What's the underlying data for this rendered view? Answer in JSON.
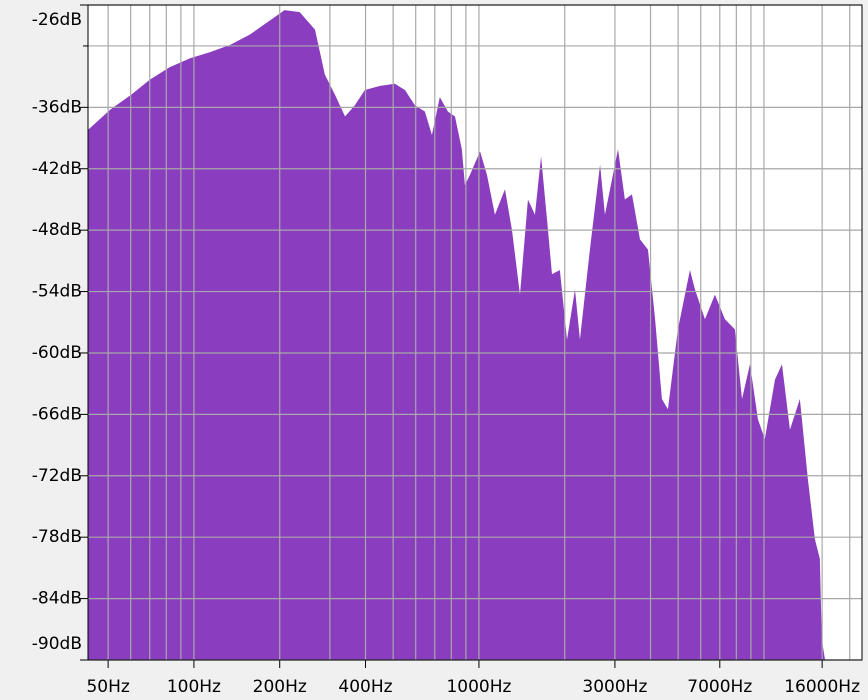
{
  "chart_data": {
    "type": "area",
    "log_x": true,
    "grid": true,
    "color": "#8a3dbf",
    "x": [
      42.5,
      51,
      60,
      70,
      82,
      97,
      114,
      134,
      157,
      185,
      208,
      235,
      266,
      288,
      313,
      339,
      367,
      398,
      450,
      507,
      550,
      596,
      646,
      684,
      729,
      778,
      824,
      871,
      893,
      930,
      1009,
      1067,
      1138,
      1234,
      1306,
      1393,
      1486,
      1572,
      1652,
      1734,
      1804,
      1923,
      2037,
      2173,
      2261,
      2451,
      2661,
      2767,
      2884,
      3076,
      3251,
      3443,
      3673,
      3918,
      4150,
      4385,
      4603,
      4990,
      5500,
      5728,
      6209,
      6730,
      7296,
      7907,
      8375,
      8933,
      9528,
      10070,
      10932,
      11566,
      12337,
      13366,
      14256,
      15092,
      15704,
      15960,
      16360
    ],
    "values": [
      -38.2,
      -36.2,
      -34.8,
      -33.3,
      -32.1,
      -31.2,
      -30.6,
      -29.9,
      -28.9,
      -27.5,
      -26.5,
      -26.7,
      -28.4,
      -32.8,
      -34.8,
      -36.9,
      -35.8,
      -34.3,
      -33.9,
      -33.7,
      -34.3,
      -35.8,
      -36.4,
      -38.7,
      -35.0,
      -36.4,
      -36.9,
      -40.1,
      -43.6,
      -42.6,
      -40.3,
      -42.6,
      -46.5,
      -44.0,
      -48.0,
      -54.3,
      -45.0,
      -46.5,
      -40.8,
      -47.0,
      -52.3,
      -51.9,
      -58.7,
      -53.8,
      -58.7,
      -49.9,
      -41.6,
      -46.5,
      -44.0,
      -40.1,
      -45.0,
      -44.5,
      -48.9,
      -49.9,
      -56.7,
      -64.5,
      -65.5,
      -57.7,
      -51.9,
      -53.8,
      -56.7,
      -54.3,
      -56.7,
      -57.7,
      -64.5,
      -61.1,
      -66.5,
      -68.4,
      -62.6,
      -61.1,
      -67.5,
      -64.5,
      -72.3,
      -78.2,
      -80.1,
      -88.0,
      -89.9
    ],
    "xlim": [
      42.5,
      22080
    ],
    "xticks": [
      {
        "value": 50,
        "label": "50Hz"
      },
      {
        "value": 100,
        "label": "100Hz"
      },
      {
        "value": 200,
        "label": "200Hz"
      },
      {
        "value": 400,
        "label": "400Hz"
      },
      {
        "value": 1000,
        "label": "1000Hz"
      },
      {
        "value": 3000,
        "label": "3000Hz"
      },
      {
        "value": 7000,
        "label": "7000Hz"
      },
      {
        "value": 16000,
        "label": "16000Hz"
      }
    ],
    "xminor": [
      60,
      70,
      80,
      90,
      300,
      500,
      600,
      700,
      800,
      900,
      2000,
      4000,
      5000,
      6000,
      8000,
      9000,
      10000,
      20000
    ],
    "ylim": [
      -90,
      -26
    ],
    "yticks": [
      {
        "value": -26,
        "label": "-26dB"
      },
      {
        "value": -36,
        "label": "-36dB"
      },
      {
        "value": -42,
        "label": "-42dB"
      },
      {
        "value": -48,
        "label": "-48dB"
      },
      {
        "value": -54,
        "label": "-54dB"
      },
      {
        "value": -60,
        "label": "-60dB"
      },
      {
        "value": -66,
        "label": "-66dB"
      },
      {
        "value": -72,
        "label": "-72dB"
      },
      {
        "value": -78,
        "label": "-78dB"
      },
      {
        "value": -84,
        "label": "-84dB"
      },
      {
        "value": -90,
        "label": "-90dB"
      }
    ],
    "yminor": [
      -30
    ]
  }
}
